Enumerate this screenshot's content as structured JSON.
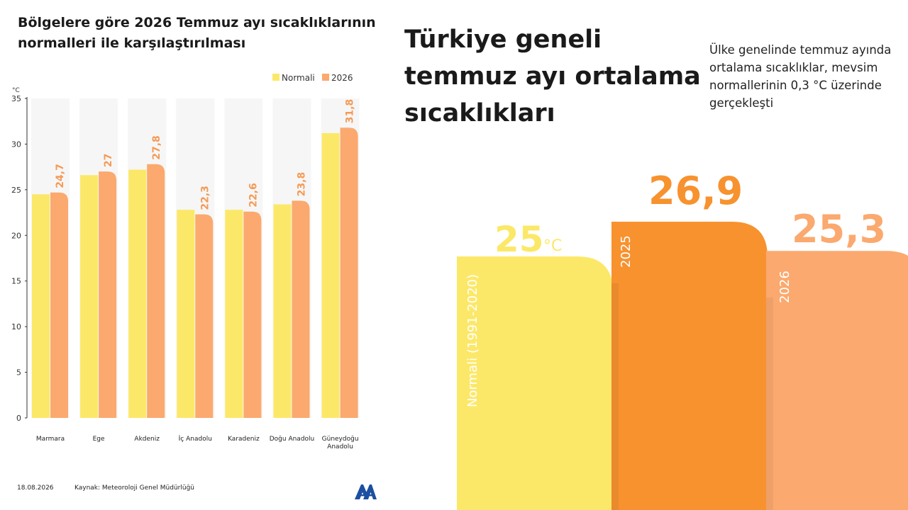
{
  "left_chart": {
    "title": "Bölgelere göre 2026 Temmuz ayı sıcaklıklarının normalleri ile karşılaştırılması",
    "unit": "°C"
  },
  "right_panel": {
    "title": "Türkiye geneli temmuz ayı ortalama sıcaklıkları",
    "note": "Ülke genelinde temmuz ayında ortalama sıcaklıklar, mevsim normallerinin 0,3 °C üzerinde gerçekleşti",
    "unit": "°C"
  },
  "footer": {
    "date": "18.08.2026",
    "source": "Kaynak: Meteoroloji Genel Müdürlüğü",
    "logo_icon": "aa-logo-icon"
  },
  "colors": {
    "normal": "#fce868",
    "y2026": "#fba96e",
    "y2025": "#f7922f",
    "label": "#f59a55",
    "panel_bg": "#f6f6f6"
  },
  "chart_data": [
    {
      "type": "bar",
      "title": "Bölgelere göre 2026 Temmuz ayı sıcaklıklarının normalleri ile karşılaştırılması",
      "ylabel": "°C",
      "ylim": [
        0,
        35
      ],
      "yticks": [
        0,
        5,
        10,
        15,
        20,
        25,
        30,
        35
      ],
      "legend_position": "top-right",
      "categories": [
        "Marmara",
        "Ege",
        "Akdeniz",
        "İç Anadolu",
        "Karadeniz",
        "Doğu Anadolu",
        "Güneydoğu Anadolu"
      ],
      "series": [
        {
          "name": "Normali",
          "values": [
            24.5,
            26.6,
            27.2,
            22.8,
            22.8,
            23.4,
            31.2
          ],
          "labeled": false
        },
        {
          "name": "2026",
          "values": [
            24.7,
            27,
            27.8,
            22.3,
            22.6,
            23.8,
            31.8
          ],
          "labels": [
            "24,7",
            "27",
            "27,8",
            "22,3",
            "22,6",
            "23,8",
            "31,8"
          ],
          "labeled": true
        }
      ]
    },
    {
      "type": "bar",
      "title": "Türkiye geneli temmuz ayı ortalama sıcaklıkları",
      "categories": [
        "Normali (1991-2020)",
        "2025",
        "2026"
      ],
      "values": [
        25,
        26.9,
        25.3
      ],
      "labels": [
        "25",
        "26,9",
        "25,3"
      ],
      "unit": "°C"
    }
  ]
}
